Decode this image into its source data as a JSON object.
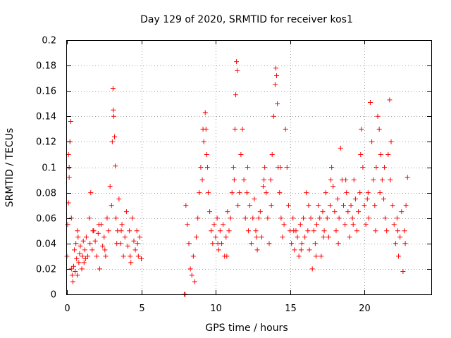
{
  "chart_data": {
    "type": "scatter",
    "title": "Day 129 of 2020, SRMTID for receiver kos1",
    "xlabel": "GPS time / hours",
    "ylabel": "SRMTID / TECUs",
    "xlim": [
      0,
      24.5
    ],
    "ylim": [
      0,
      0.2
    ],
    "xticks": [
      0,
      5,
      10,
      15,
      20
    ],
    "xtick_labels": [
      "0",
      "5",
      "10",
      "15",
      "20"
    ],
    "yticks": [
      0,
      0.02,
      0.04,
      0.06,
      0.08,
      0.1,
      0.12,
      0.14,
      0.16,
      0.18,
      0.2
    ],
    "ytick_labels": [
      "0",
      "0.02",
      "0.04",
      "0.06",
      "0.08",
      "0.1",
      "0.12",
      "0.14",
      "0.16",
      "0.18",
      "0.2"
    ],
    "grid": true,
    "marker": "+",
    "color": "#ff0000",
    "series": [
      {
        "name": "SRMTID",
        "points": [
          [
            0.0,
            0.03
          ],
          [
            0.05,
            0.055
          ],
          [
            0.1,
            0.072
          ],
          [
            0.1,
            0.11
          ],
          [
            0.15,
            0.092
          ],
          [
            0.2,
            0.12
          ],
          [
            0.25,
            0.136
          ],
          [
            0.3,
            0.02
          ],
          [
            0.35,
            0.015
          ],
          [
            0.4,
            0.01
          ],
          [
            0.45,
            0.022
          ],
          [
            0.5,
            0.035
          ],
          [
            0.55,
            0.018
          ],
          [
            0.6,
            0.04
          ],
          [
            0.65,
            0.028
          ],
          [
            0.7,
            0.05
          ],
          [
            0.75,
            0.045
          ],
          [
            0.8,
            0.025
          ],
          [
            0.85,
            0.032
          ],
          [
            0.9,
            0.038
          ],
          [
            1.0,
            0.02
          ],
          [
            1.05,
            0.03
          ],
          [
            1.1,
            0.042
          ],
          [
            1.2,
            0.035
          ],
          [
            1.25,
            0.028
          ],
          [
            1.3,
            0.045
          ],
          [
            1.4,
            0.03
          ],
          [
            1.5,
            0.06
          ],
          [
            1.55,
            0.04
          ],
          [
            1.6,
            0.08
          ],
          [
            1.7,
            0.035
          ],
          [
            1.8,
            0.05
          ],
          [
            1.9,
            0.042
          ],
          [
            2.0,
            0.03
          ],
          [
            2.1,
            0.048
          ],
          [
            2.2,
            0.02
          ],
          [
            2.3,
            0.055
          ],
          [
            2.4,
            0.038
          ],
          [
            2.5,
            0.045
          ],
          [
            2.6,
            0.03
          ],
          [
            2.7,
            0.06
          ],
          [
            2.8,
            0.05
          ],
          [
            2.9,
            0.085
          ],
          [
            3.0,
            0.07
          ],
          [
            3.05,
            0.12
          ],
          [
            3.1,
            0.162
          ],
          [
            3.12,
            0.145
          ],
          [
            3.15,
            0.14
          ],
          [
            3.2,
            0.124
          ],
          [
            3.25,
            0.101
          ],
          [
            3.3,
            0.06
          ],
          [
            3.4,
            0.05
          ],
          [
            3.5,
            0.075
          ],
          [
            3.6,
            0.04
          ],
          [
            3.7,
            0.055
          ],
          [
            3.8,
            0.03
          ],
          [
            3.9,
            0.045
          ],
          [
            4.0,
            0.065
          ],
          [
            4.1,
            0.038
          ],
          [
            4.2,
            0.05
          ],
          [
            4.3,
            0.025
          ],
          [
            4.4,
            0.06
          ],
          [
            4.5,
            0.042
          ],
          [
            4.6,
            0.035
          ],
          [
            4.7,
            0.05
          ],
          [
            4.8,
            0.03
          ],
          [
            4.9,
            0.045
          ],
          [
            5.0,
            0.028
          ],
          [
            0.15,
            0.1
          ],
          [
            0.3,
            0.06
          ],
          [
            0.7,
            0.015
          ],
          [
            1.15,
            0.025
          ],
          [
            1.75,
            0.05
          ],
          [
            2.15,
            0.055
          ],
          [
            2.55,
            0.035
          ],
          [
            3.35,
            0.04
          ],
          [
            3.65,
            0.05
          ],
          [
            4.25,
            0.03
          ],
          [
            4.75,
            0.04
          ],
          [
            7.9,
            0.0
          ],
          [
            7.95,
            0.0
          ],
          [
            8.0,
            0.07
          ],
          [
            8.1,
            0.055
          ],
          [
            8.2,
            0.04
          ],
          [
            8.3,
            0.02
          ],
          [
            8.4,
            0.015
          ],
          [
            8.5,
            0.03
          ],
          [
            8.6,
            0.01
          ],
          [
            8.7,
            0.045
          ],
          [
            8.8,
            0.06
          ],
          [
            8.9,
            0.08
          ],
          [
            9.0,
            0.1
          ],
          [
            9.1,
            0.09
          ],
          [
            9.2,
            0.12
          ],
          [
            9.3,
            0.143
          ],
          [
            9.35,
            0.13
          ],
          [
            9.4,
            0.11
          ],
          [
            9.5,
            0.08
          ],
          [
            9.6,
            0.065
          ],
          [
            9.7,
            0.05
          ],
          [
            9.8,
            0.04
          ],
          [
            9.9,
            0.055
          ],
          [
            10.0,
            0.045
          ],
          [
            10.1,
            0.06
          ],
          [
            10.2,
            0.035
          ],
          [
            10.3,
            0.05
          ],
          [
            10.4,
            0.04
          ],
          [
            10.5,
            0.055
          ],
          [
            10.6,
            0.03
          ],
          [
            10.7,
            0.045
          ],
          [
            10.8,
            0.065
          ],
          [
            10.9,
            0.05
          ],
          [
            11.0,
            0.06
          ],
          [
            11.1,
            0.08
          ],
          [
            11.2,
            0.1
          ],
          [
            11.3,
            0.13
          ],
          [
            11.35,
            0.157
          ],
          [
            11.4,
            0.183
          ],
          [
            11.45,
            0.176
          ],
          [
            11.5,
            0.07
          ],
          [
            11.6,
            0.08
          ],
          [
            11.7,
            0.11
          ],
          [
            11.8,
            0.13
          ],
          [
            11.9,
            0.09
          ],
          [
            12.0,
            0.06
          ],
          [
            12.1,
            0.08
          ],
          [
            12.2,
            0.05
          ],
          [
            12.3,
            0.07
          ],
          [
            12.4,
            0.04
          ],
          [
            12.5,
            0.06
          ],
          [
            12.6,
            0.075
          ],
          [
            12.7,
            0.05
          ],
          [
            12.8,
            0.035
          ],
          [
            12.9,
            0.06
          ],
          [
            13.0,
            0.065
          ],
          [
            13.1,
            0.045
          ],
          [
            13.2,
            0.085
          ],
          [
            13.3,
            0.1
          ],
          [
            13.4,
            0.08
          ],
          [
            13.5,
            0.06
          ],
          [
            13.6,
            0.04
          ],
          [
            13.7,
            0.09
          ],
          [
            13.8,
            0.11
          ],
          [
            13.9,
            0.14
          ],
          [
            14.0,
            0.165
          ],
          [
            14.05,
            0.178
          ],
          [
            14.1,
            0.172
          ],
          [
            14.2,
            0.1
          ],
          [
            14.3,
            0.08
          ],
          [
            14.4,
            0.06
          ],
          [
            14.5,
            0.045
          ],
          [
            14.6,
            0.055
          ],
          [
            14.7,
            0.13
          ],
          [
            14.8,
            0.1
          ],
          [
            14.9,
            0.07
          ],
          [
            15.0,
            0.05
          ],
          [
            15.1,
            0.04
          ],
          [
            15.2,
            0.06
          ],
          [
            15.3,
            0.035
          ],
          [
            15.4,
            0.05
          ],
          [
            15.5,
            0.045
          ],
          [
            15.6,
            0.03
          ],
          [
            15.7,
            0.055
          ],
          [
            15.8,
            0.04
          ],
          [
            15.9,
            0.06
          ],
          [
            16.0,
            0.045
          ],
          [
            16.1,
            0.08
          ],
          [
            16.2,
            0.05
          ],
          [
            16.3,
            0.035
          ],
          [
            16.4,
            0.06
          ],
          [
            16.5,
            0.02
          ],
          [
            16.6,
            0.05
          ],
          [
            16.7,
            0.04
          ],
          [
            16.8,
            0.055
          ],
          [
            16.9,
            0.07
          ],
          [
            17.0,
            0.06
          ],
          [
            17.1,
            0.03
          ],
          [
            17.2,
            0.065
          ],
          [
            17.3,
            0.05
          ],
          [
            17.4,
            0.08
          ],
          [
            17.5,
            0.06
          ],
          [
            17.6,
            0.045
          ],
          [
            17.7,
            0.07
          ],
          [
            17.8,
            0.1
          ],
          [
            17.9,
            0.085
          ],
          [
            18.0,
            0.065
          ],
          [
            18.1,
            0.05
          ],
          [
            18.2,
            0.075
          ],
          [
            18.3,
            0.06
          ],
          [
            18.4,
            0.115
          ],
          [
            18.5,
            0.09
          ],
          [
            18.6,
            0.07
          ],
          [
            18.7,
            0.055
          ],
          [
            18.8,
            0.08
          ],
          [
            18.9,
            0.065
          ],
          [
            19.0,
            0.045
          ],
          [
            19.1,
            0.07
          ],
          [
            19.2,
            0.06
          ],
          [
            19.3,
            0.09
          ],
          [
            19.4,
            0.075
          ],
          [
            19.5,
            0.05
          ],
          [
            19.6,
            0.065
          ],
          [
            19.7,
            0.08
          ],
          [
            19.8,
            0.13
          ],
          [
            19.9,
            0.1
          ],
          [
            20.0,
            0.07
          ],
          [
            20.1,
            0.055
          ],
          [
            20.2,
            0.075
          ],
          [
            20.3,
            0.06
          ],
          [
            20.4,
            0.151
          ],
          [
            20.5,
            0.12
          ],
          [
            20.6,
            0.09
          ],
          [
            20.7,
            0.07
          ],
          [
            20.8,
            0.1
          ],
          [
            20.9,
            0.14
          ],
          [
            21.0,
            0.13
          ],
          [
            21.1,
            0.11
          ],
          [
            21.2,
            0.09
          ],
          [
            21.3,
            0.075
          ],
          [
            21.4,
            0.06
          ],
          [
            21.5,
            0.05
          ],
          [
            21.6,
            0.11
          ],
          [
            21.7,
            0.153
          ],
          [
            21.8,
            0.12
          ],
          [
            21.9,
            0.07
          ],
          [
            22.0,
            0.055
          ],
          [
            22.1,
            0.04
          ],
          [
            22.2,
            0.06
          ],
          [
            22.3,
            0.03
          ],
          [
            22.4,
            0.045
          ],
          [
            22.5,
            0.065
          ],
          [
            22.6,
            0.018
          ],
          [
            22.7,
            0.05
          ],
          [
            22.8,
            0.07
          ],
          [
            22.9,
            0.092
          ],
          [
            9.15,
            0.13
          ],
          [
            9.45,
            0.1
          ],
          [
            10.15,
            0.04
          ],
          [
            10.75,
            0.03
          ],
          [
            11.25,
            0.09
          ],
          [
            12.15,
            0.1
          ],
          [
            12.75,
            0.045
          ],
          [
            13.25,
            0.09
          ],
          [
            13.75,
            0.07
          ],
          [
            14.15,
            0.15
          ],
          [
            14.35,
            0.1
          ],
          [
            15.25,
            0.05
          ],
          [
            15.75,
            0.035
          ],
          [
            16.25,
            0.07
          ],
          [
            16.75,
            0.03
          ],
          [
            17.25,
            0.045
          ],
          [
            17.75,
            0.09
          ],
          [
            18.25,
            0.04
          ],
          [
            18.75,
            0.09
          ],
          [
            19.25,
            0.055
          ],
          [
            19.75,
            0.11
          ],
          [
            20.25,
            0.08
          ],
          [
            20.75,
            0.05
          ],
          [
            21.05,
            0.08
          ],
          [
            21.35,
            0.1
          ],
          [
            21.75,
            0.09
          ],
          [
            22.25,
            0.05
          ],
          [
            22.75,
            0.04
          ]
        ]
      }
    ]
  }
}
